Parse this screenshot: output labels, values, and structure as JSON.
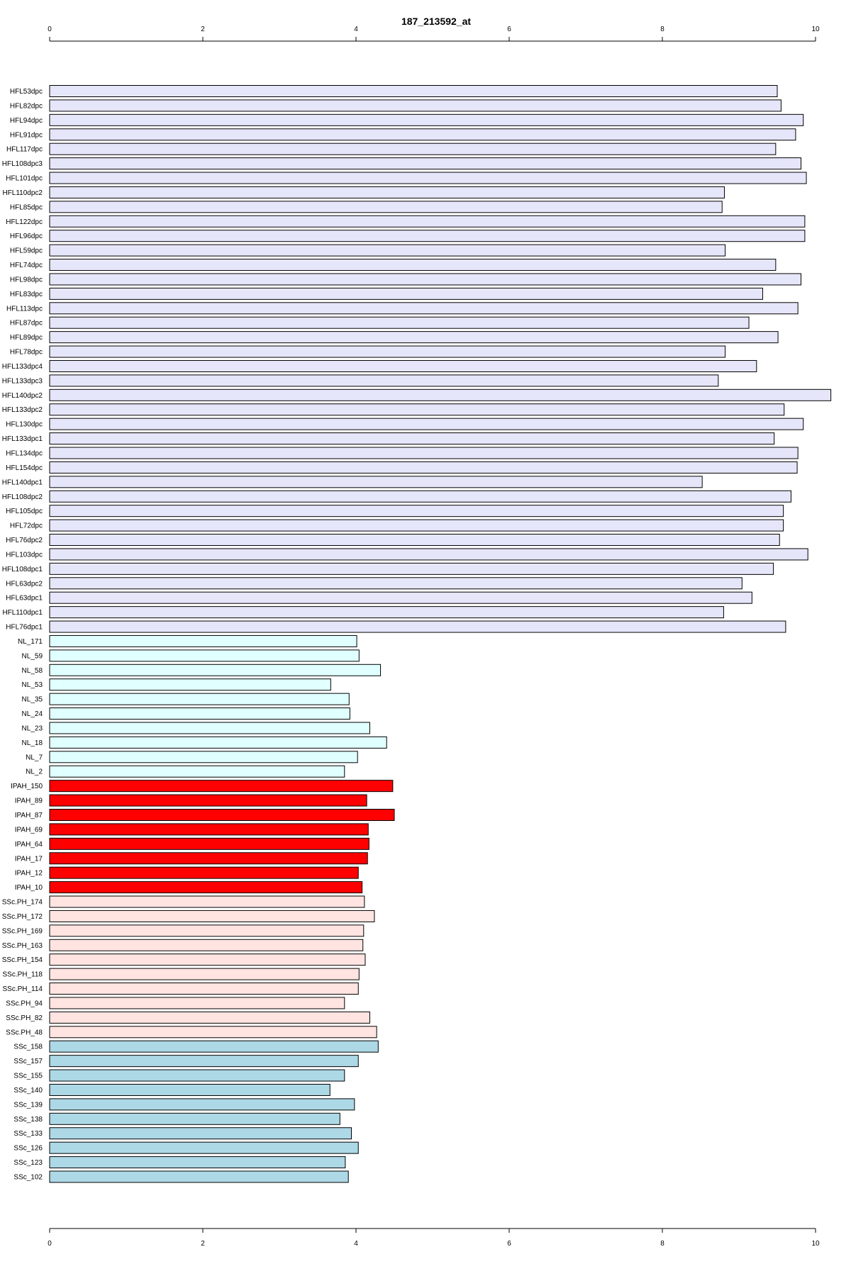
{
  "chart_data": {
    "type": "bar",
    "orientation": "horizontal",
    "title": "187_213592_at",
    "xlabel": "",
    "ylabel": "",
    "xlim": [
      0,
      10
    ],
    "xticks": [
      "0",
      "2",
      "4",
      "6",
      "8",
      "10"
    ],
    "grid": false,
    "legend": "none",
    "categories": [
      "HFL53dpc",
      "HFL82dpc",
      "HFL94dpc",
      "HFL91dpc",
      "HFL117dpc",
      "HFL108dpc3",
      "HFL101dpc",
      "HFL110dpc2",
      "HFL85dpc",
      "HFL122dpc",
      "HFL96dpc",
      "HFL59dpc",
      "HFL74dpc",
      "HFL98dpc",
      "HFL83dpc",
      "HFL113dpc",
      "HFL87dpc",
      "HFL89dpc",
      "HFL78dpc",
      "HFL133dpc4",
      "HFL133dpc3",
      "HFL140dpc2",
      "HFL133dpc2",
      "HFL130dpc",
      "HFL133dpc1",
      "HFL134dpc",
      "HFL154dpc",
      "HFL140dpc1",
      "HFL108dpc2",
      "HFL105dpc",
      "HFL72dpc",
      "HFL76dpc2",
      "HFL103dpc",
      "HFL108dpc1",
      "HFL63dpc2",
      "HFL63dpc1",
      "HFL110dpc1",
      "HFL76dpc1",
      "NL_171",
      "NL_59",
      "NL_58",
      "NL_53",
      "NL_35",
      "NL_24",
      "NL_23",
      "NL_18",
      "NL_7",
      "NL_2",
      "IPAH_150",
      "IPAH_89",
      "IPAH_87",
      "IPAH_69",
      "IPAH_64",
      "IPAH_17",
      "IPAH_12",
      "IPAH_10",
      "SSc.PH_174",
      "SSc.PH_172",
      "SSc.PH_169",
      "SSc.PH_163",
      "SSc.PH_154",
      "SSc.PH_118",
      "SSc.PH_114",
      "SSc.PH_94",
      "SSc.PH_82",
      "SSc.PH_48",
      "SSc_158",
      "SSc_157",
      "SSc_155",
      "SSc_140",
      "SSc_139",
      "SSc_138",
      "SSc_133",
      "SSc_126",
      "SSc_123",
      "SSc_102"
    ],
    "values": [
      9.5,
      9.55,
      9.84,
      9.74,
      9.48,
      9.81,
      9.88,
      8.81,
      8.78,
      9.86,
      9.86,
      8.82,
      9.48,
      9.81,
      9.31,
      9.77,
      9.13,
      9.51,
      8.82,
      9.23,
      8.73,
      10.2,
      9.59,
      9.84,
      9.46,
      9.77,
      9.76,
      8.52,
      9.68,
      9.58,
      9.58,
      9.53,
      9.9,
      9.45,
      9.04,
      9.17,
      8.8,
      9.61,
      4.01,
      4.04,
      4.32,
      3.67,
      3.91,
      3.92,
      4.18,
      4.4,
      4.02,
      3.85,
      4.48,
      4.14,
      4.5,
      4.16,
      4.17,
      4.15,
      4.03,
      4.08,
      4.11,
      4.24,
      4.1,
      4.09,
      4.12,
      4.04,
      4.03,
      3.85,
      4.18,
      4.27,
      4.29,
      4.03,
      3.85,
      3.66,
      3.98,
      3.79,
      3.94,
      4.03,
      3.86,
      3.9
    ],
    "groups": [
      {
        "prefix": "HFL",
        "count": 38,
        "color": "#e6e6fa"
      },
      {
        "prefix": "NL",
        "count": 10,
        "color": "#e0ffff"
      },
      {
        "prefix": "IPAH",
        "count": 8,
        "color": "#ff0000"
      },
      {
        "prefix": "SSc.PH",
        "count": 10,
        "color": "#ffe4e1"
      },
      {
        "prefix": "SSc",
        "count": 10,
        "color": "#add8e6"
      }
    ]
  }
}
